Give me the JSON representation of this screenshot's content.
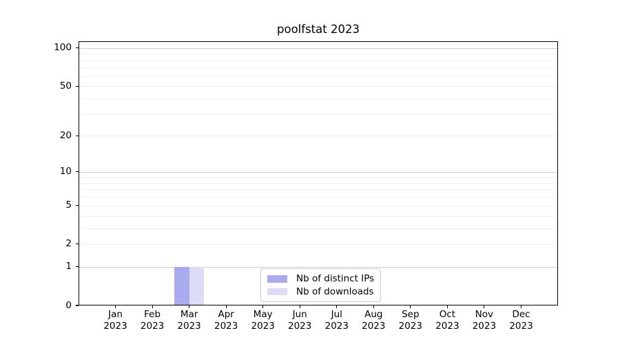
{
  "chart_data": {
    "type": "bar",
    "title": "poolfstat 2023",
    "categories": [
      "Jan",
      "Feb",
      "Mar",
      "Apr",
      "May",
      "Jun",
      "Jul",
      "Aug",
      "Sep",
      "Oct",
      "Nov",
      "Dec"
    ],
    "category_year": "2023",
    "series": [
      {
        "name": "Nb of distinct IPs",
        "color": "#aaaaee",
        "values": [
          0,
          0,
          1,
          0,
          0,
          0,
          0,
          0,
          0,
          0,
          0,
          0
        ]
      },
      {
        "name": "Nb of downloads",
        "color": "#dcdcf9",
        "values": [
          0,
          0,
          1,
          0,
          0,
          0,
          0,
          0,
          0,
          0,
          0,
          0
        ]
      }
    ],
    "xlabel": "",
    "ylabel": "",
    "yscale": "log1p",
    "ylim": [
      0,
      113
    ],
    "yticks": [
      0,
      1,
      2,
      5,
      10,
      20,
      50,
      100
    ],
    "y_gridlines_major": [
      1,
      10,
      100
    ],
    "y_gridlines_minor": [
      2,
      3,
      4,
      5,
      6,
      7,
      8,
      9,
      20,
      30,
      40,
      50,
      60,
      70,
      80,
      90
    ],
    "grid": "both",
    "legend_position": "lower center",
    "colors": {
      "grid_major": "#cccccc",
      "grid_minor": "#f0f0f0",
      "axis": "#000000",
      "background": "#ffffff"
    }
  }
}
